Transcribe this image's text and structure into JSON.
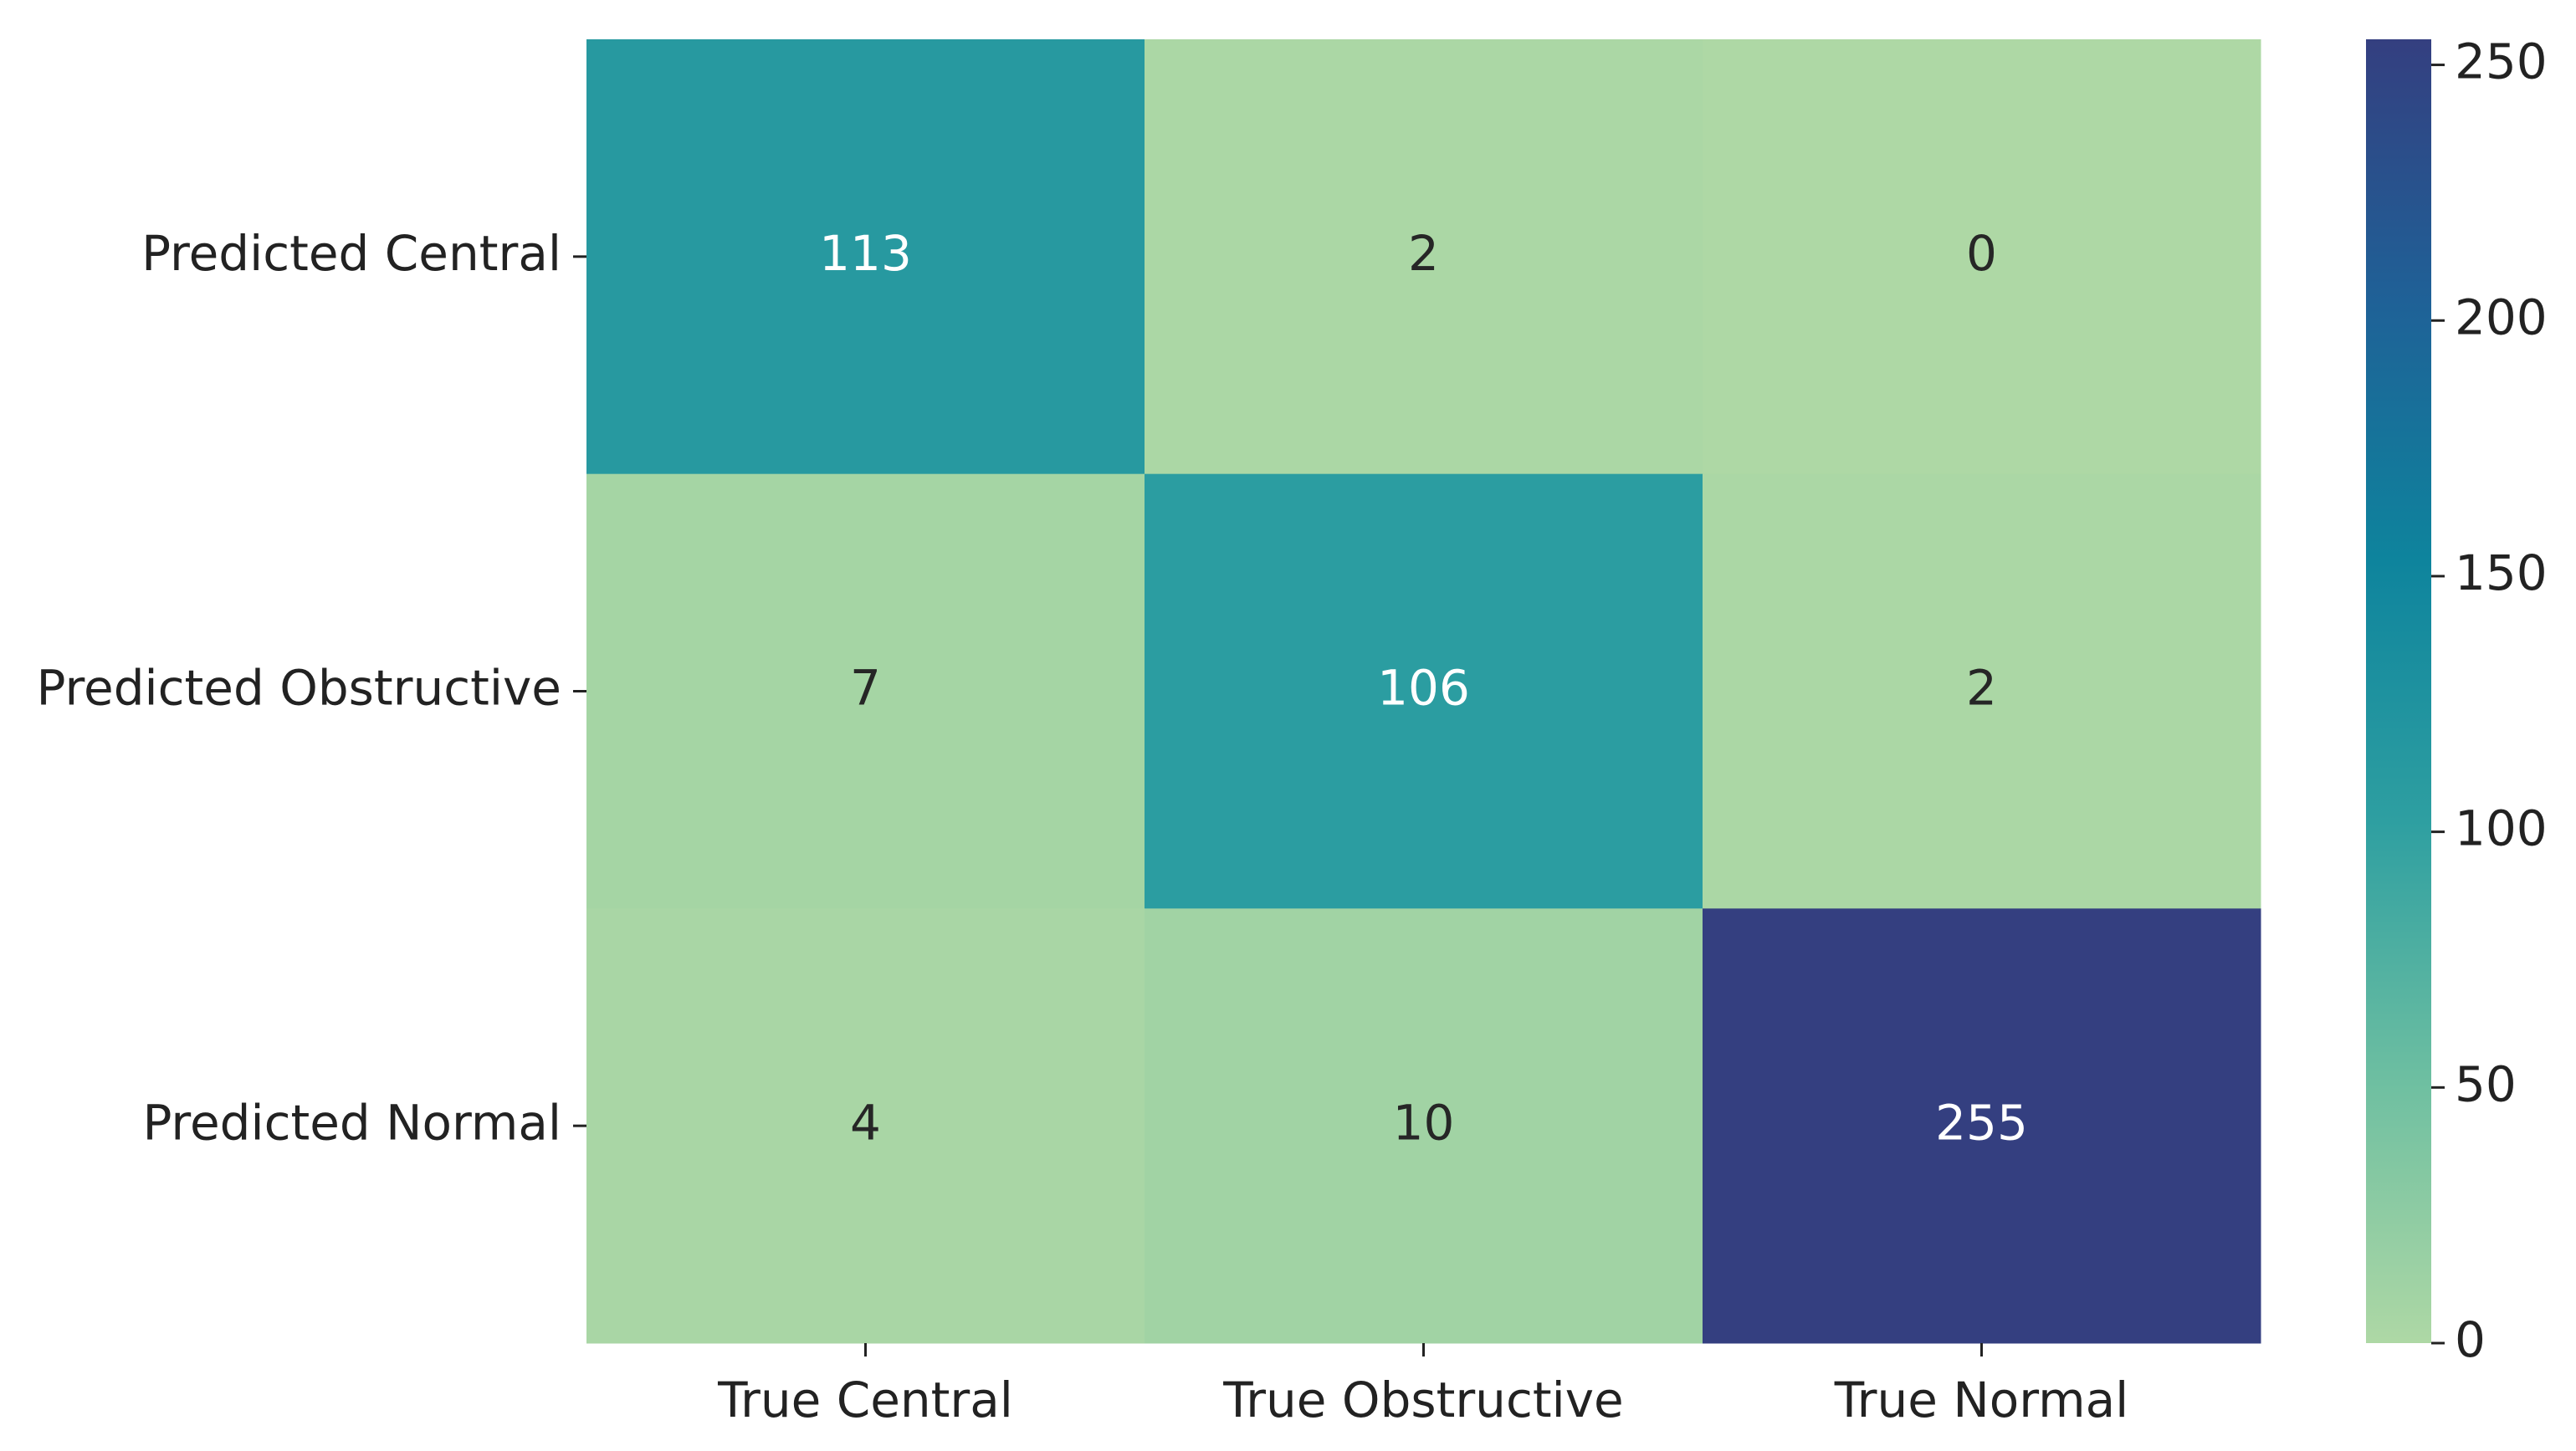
{
  "chart_data": {
    "type": "heatmap",
    "x_categories": [
      "True Central",
      "True Obstructive",
      "True Normal"
    ],
    "y_categories": [
      "Predicted Central",
      "Predicted Obstructive",
      "Predicted Normal"
    ],
    "values": [
      [
        113,
        2,
        0
      ],
      [
        7,
        106,
        2
      ],
      [
        4,
        10,
        255
      ]
    ],
    "colormap": [
      "#aed8a5",
      "#6ebfa1",
      "#2e9fa1",
      "#0e849d",
      "#1f6197",
      "#343f80"
    ],
    "colorbar_lim": [
      0,
      255
    ],
    "colorbar_ticks": [
      0,
      50,
      100,
      150,
      200,
      250
    ]
  }
}
